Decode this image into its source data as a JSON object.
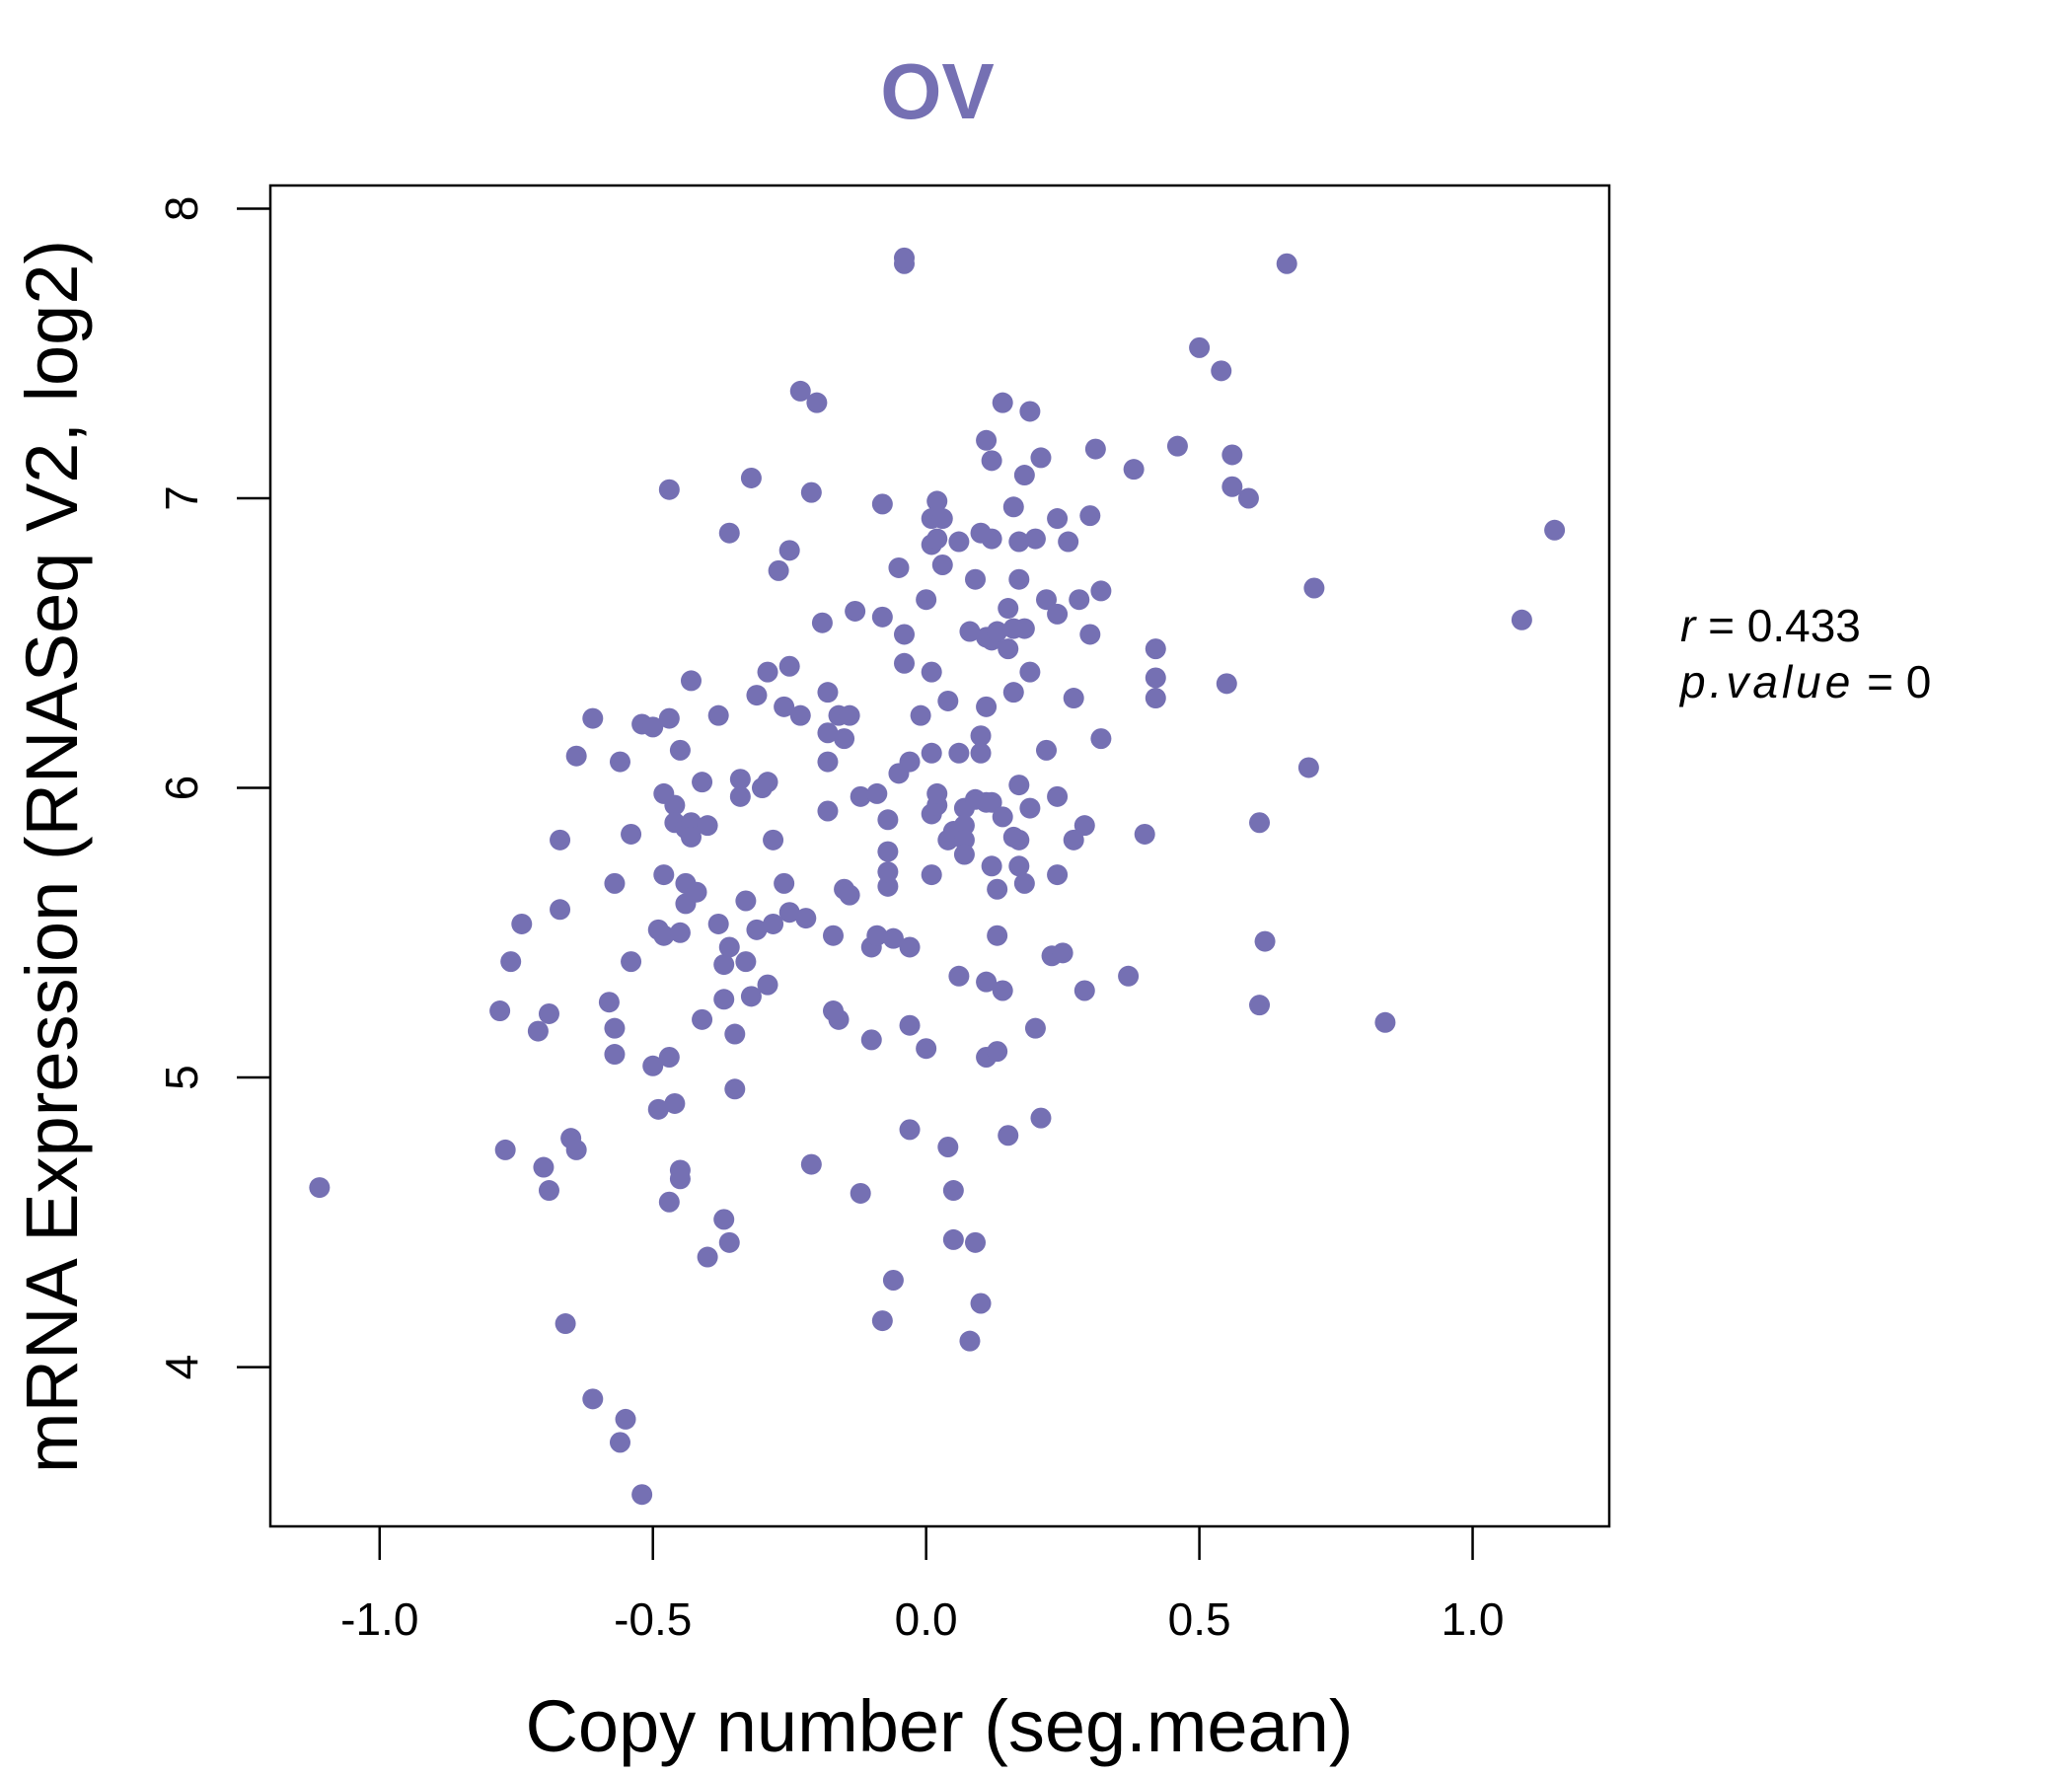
{
  "chart_data": {
    "type": "scatter",
    "title": "OV",
    "xlabel": "Copy number (seg.mean)",
    "ylabel": "mRNA Expression (RNASeq V2, log2)",
    "xlim": [
      -1.2,
      1.25
    ],
    "ylim": [
      3.45,
      8.08
    ],
    "xticks": [
      -1.0,
      -0.5,
      0.0,
      0.5,
      1.0
    ],
    "xtick_labels": [
      "-1.0",
      "-0.5",
      "0.0",
      "0.5",
      "1.0"
    ],
    "yticks": [
      4,
      5,
      6,
      7,
      8
    ],
    "ytick_labels": [
      "4",
      "5",
      "6",
      "7",
      "8"
    ],
    "grid": false,
    "point_color": "#7570b3",
    "annotation": {
      "r_symbol": "r",
      "r_text": " = 0.433",
      "p_symbol": "p.value",
      "p_text": " = 0"
    },
    "points": [
      [
        -1.11,
        4.62
      ],
      [
        -0.78,
        5.23
      ],
      [
        -0.77,
        4.75
      ],
      [
        -0.76,
        5.4
      ],
      [
        -0.74,
        5.53
      ],
      [
        -0.71,
        5.16
      ],
      [
        -0.7,
        4.69
      ],
      [
        -0.69,
        5.22
      ],
      [
        -0.69,
        4.61
      ],
      [
        -0.67,
        5.82
      ],
      [
        -0.67,
        5.58
      ],
      [
        -0.66,
        4.15
      ],
      [
        -0.65,
        4.79
      ],
      [
        -0.64,
        4.75
      ],
      [
        -0.64,
        6.11
      ],
      [
        -0.61,
        6.24
      ],
      [
        -0.61,
        3.89
      ],
      [
        -0.58,
        5.26
      ],
      [
        -0.57,
        5.08
      ],
      [
        -0.57,
        5.17
      ],
      [
        -0.57,
        5.67
      ],
      [
        -0.56,
        6.09
      ],
      [
        -0.56,
        3.74
      ],
      [
        -0.55,
        3.82
      ],
      [
        -0.54,
        5.84
      ],
      [
        -0.54,
        5.4
      ],
      [
        -0.52,
        3.56
      ],
      [
        -0.52,
        6.22
      ],
      [
        -0.5,
        5.04
      ],
      [
        -0.5,
        6.21
      ],
      [
        -0.49,
        5.51
      ],
      [
        -0.49,
        4.89
      ],
      [
        -0.48,
        5.49
      ],
      [
        -0.48,
        5.98
      ],
      [
        -0.48,
        5.7
      ],
      [
        -0.47,
        4.57
      ],
      [
        -0.47,
        5.07
      ],
      [
        -0.47,
        6.24
      ],
      [
        -0.47,
        7.03
      ],
      [
        -0.46,
        5.94
      ],
      [
        -0.46,
        5.88
      ],
      [
        -0.46,
        4.91
      ],
      [
        -0.45,
        4.68
      ],
      [
        -0.45,
        4.65
      ],
      [
        -0.45,
        6.13
      ],
      [
        -0.45,
        5.5
      ],
      [
        -0.44,
        5.86
      ],
      [
        -0.44,
        5.6
      ],
      [
        -0.44,
        5.67
      ],
      [
        -0.43,
        5.88
      ],
      [
        -0.43,
        5.83
      ],
      [
        -0.43,
        6.37
      ],
      [
        -0.42,
        5.64
      ],
      [
        -0.41,
        5.2
      ],
      [
        -0.41,
        6.02
      ],
      [
        -0.4,
        5.87
      ],
      [
        -0.4,
        4.38
      ],
      [
        -0.38,
        6.25
      ],
      [
        -0.38,
        5.53
      ],
      [
        -0.37,
        4.51
      ],
      [
        -0.37,
        5.39
      ],
      [
        -0.37,
        5.27
      ],
      [
        -0.36,
        6.88
      ],
      [
        -0.36,
        5.45
      ],
      [
        -0.36,
        4.43
      ],
      [
        -0.35,
        4.96
      ],
      [
        -0.35,
        5.15
      ],
      [
        -0.34,
        5.97
      ],
      [
        -0.34,
        6.03
      ],
      [
        -0.33,
        5.61
      ],
      [
        -0.33,
        5.4
      ],
      [
        -0.32,
        5.28
      ],
      [
        -0.32,
        7.07
      ],
      [
        -0.31,
        6.32
      ],
      [
        -0.31,
        5.51
      ],
      [
        -0.3,
        6.0
      ],
      [
        -0.29,
        6.02
      ],
      [
        -0.29,
        6.4
      ],
      [
        -0.29,
        5.32
      ],
      [
        -0.28,
        5.53
      ],
      [
        -0.28,
        5.82
      ],
      [
        -0.27,
        6.75
      ],
      [
        -0.26,
        6.28
      ],
      [
        -0.26,
        5.67
      ],
      [
        -0.25,
        6.82
      ],
      [
        -0.25,
        6.42
      ],
      [
        -0.25,
        5.57
      ],
      [
        -0.23,
        6.25
      ],
      [
        -0.23,
        7.37
      ],
      [
        -0.22,
        5.55
      ],
      [
        -0.21,
        4.7
      ],
      [
        -0.21,
        7.02
      ],
      [
        -0.2,
        7.33
      ],
      [
        -0.19,
        6.57
      ],
      [
        -0.18,
        6.33
      ],
      [
        -0.18,
        6.09
      ],
      [
        -0.18,
        5.92
      ],
      [
        -0.18,
        6.19
      ],
      [
        -0.17,
        5.23
      ],
      [
        -0.17,
        5.49
      ],
      [
        -0.16,
        6.25
      ],
      [
        -0.16,
        5.2
      ],
      [
        -0.15,
        5.65
      ],
      [
        -0.15,
        6.17
      ],
      [
        -0.14,
        5.63
      ],
      [
        -0.14,
        6.25
      ],
      [
        -0.13,
        6.61
      ],
      [
        -0.12,
        5.97
      ],
      [
        -0.12,
        4.6
      ],
      [
        -0.1,
        5.45
      ],
      [
        -0.1,
        5.13
      ],
      [
        -0.09,
        5.49
      ],
      [
        -0.09,
        5.98
      ],
      [
        -0.08,
        4.16
      ],
      [
        -0.08,
        6.98
      ],
      [
        -0.08,
        6.59
      ],
      [
        -0.07,
        5.66
      ],
      [
        -0.07,
        5.71
      ],
      [
        -0.07,
        5.78
      ],
      [
        -0.07,
        5.89
      ],
      [
        -0.06,
        5.48
      ],
      [
        -0.06,
        4.3
      ],
      [
        -0.05,
        6.76
      ],
      [
        -0.05,
        6.05
      ],
      [
        -0.04,
        6.43
      ],
      [
        -0.04,
        6.53
      ],
      [
        -0.04,
        7.81
      ],
      [
        -0.04,
        7.83
      ],
      [
        -0.03,
        6.09
      ],
      [
        -0.03,
        5.45
      ],
      [
        -0.03,
        5.18
      ],
      [
        -0.03,
        4.82
      ],
      [
        -0.01,
        6.25
      ],
      [
        0.0,
        6.65
      ],
      [
        0.0,
        5.1
      ],
      [
        0.01,
        5.7
      ],
      [
        0.01,
        5.91
      ],
      [
        0.01,
        6.12
      ],
      [
        0.01,
        6.4
      ],
      [
        0.01,
        6.84
      ],
      [
        0.01,
        6.93
      ],
      [
        0.02,
        6.99
      ],
      [
        0.02,
        6.86
      ],
      [
        0.02,
        5.94
      ],
      [
        0.02,
        5.98
      ],
      [
        0.03,
        6.93
      ],
      [
        0.03,
        6.77
      ],
      [
        0.04,
        6.3
      ],
      [
        0.04,
        5.82
      ],
      [
        0.04,
        4.76
      ],
      [
        0.05,
        4.61
      ],
      [
        0.05,
        4.44
      ],
      [
        0.05,
        5.85
      ],
      [
        0.06,
        6.85
      ],
      [
        0.06,
        5.35
      ],
      [
        0.06,
        6.12
      ],
      [
        0.07,
        5.93
      ],
      [
        0.07,
        5.87
      ],
      [
        0.07,
        5.82
      ],
      [
        0.07,
        5.77
      ],
      [
        0.08,
        6.54
      ],
      [
        0.08,
        4.09
      ],
      [
        0.09,
        6.72
      ],
      [
        0.09,
        5.96
      ],
      [
        0.09,
        4.43
      ],
      [
        0.1,
        6.18
      ],
      [
        0.1,
        6.12
      ],
      [
        0.1,
        4.22
      ],
      [
        0.1,
        6.88
      ],
      [
        0.11,
        6.28
      ],
      [
        0.11,
        5.95
      ],
      [
        0.11,
        5.33
      ],
      [
        0.11,
        5.07
      ],
      [
        0.11,
        7.2
      ],
      [
        0.11,
        6.52
      ],
      [
        0.12,
        5.73
      ],
      [
        0.12,
        5.95
      ],
      [
        0.12,
        6.51
      ],
      [
        0.12,
        6.86
      ],
      [
        0.12,
        7.13
      ],
      [
        0.13,
        5.49
      ],
      [
        0.13,
        5.09
      ],
      [
        0.13,
        5.65
      ],
      [
        0.13,
        6.54
      ],
      [
        0.14,
        7.33
      ],
      [
        0.14,
        5.3
      ],
      [
        0.14,
        5.9
      ],
      [
        0.15,
        6.62
      ],
      [
        0.15,
        6.48
      ],
      [
        0.15,
        4.8
      ],
      [
        0.16,
        6.97
      ],
      [
        0.16,
        6.33
      ],
      [
        0.16,
        6.55
      ],
      [
        0.16,
        5.83
      ],
      [
        0.17,
        6.01
      ],
      [
        0.17,
        5.73
      ],
      [
        0.17,
        6.72
      ],
      [
        0.17,
        6.85
      ],
      [
        0.17,
        5.82
      ],
      [
        0.18,
        5.67
      ],
      [
        0.18,
        7.08
      ],
      [
        0.18,
        6.55
      ],
      [
        0.19,
        6.4
      ],
      [
        0.19,
        5.93
      ],
      [
        0.19,
        7.3
      ],
      [
        0.2,
        5.17
      ],
      [
        0.2,
        6.86
      ],
      [
        0.21,
        7.14
      ],
      [
        0.21,
        4.86
      ],
      [
        0.22,
        6.13
      ],
      [
        0.22,
        6.65
      ],
      [
        0.23,
        5.42
      ],
      [
        0.24,
        5.7
      ],
      [
        0.24,
        5.97
      ],
      [
        0.24,
        6.6
      ],
      [
        0.24,
        6.93
      ],
      [
        0.25,
        5.43
      ],
      [
        0.26,
        6.85
      ],
      [
        0.27,
        6.31
      ],
      [
        0.27,
        5.82
      ],
      [
        0.28,
        6.65
      ],
      [
        0.29,
        5.87
      ],
      [
        0.29,
        5.3
      ],
      [
        0.3,
        6.53
      ],
      [
        0.3,
        6.94
      ],
      [
        0.31,
        7.17
      ],
      [
        0.32,
        6.17
      ],
      [
        0.32,
        6.68
      ],
      [
        0.37,
        5.35
      ],
      [
        0.38,
        7.1
      ],
      [
        0.4,
        5.84
      ],
      [
        0.42,
        6.48
      ],
      [
        0.42,
        6.38
      ],
      [
        0.42,
        6.31
      ],
      [
        0.46,
        7.18
      ],
      [
        0.5,
        7.52
      ],
      [
        0.54,
        7.44
      ],
      [
        0.55,
        6.36
      ],
      [
        0.56,
        7.04
      ],
      [
        0.56,
        7.15
      ],
      [
        0.59,
        7.0
      ],
      [
        0.61,
        5.88
      ],
      [
        0.61,
        5.25
      ],
      [
        0.62,
        5.47
      ],
      [
        0.66,
        7.81
      ],
      [
        0.7,
        6.07
      ],
      [
        0.71,
        6.69
      ],
      [
        0.84,
        5.19
      ],
      [
        1.09,
        6.58
      ],
      [
        1.15,
        6.89
      ]
    ]
  }
}
